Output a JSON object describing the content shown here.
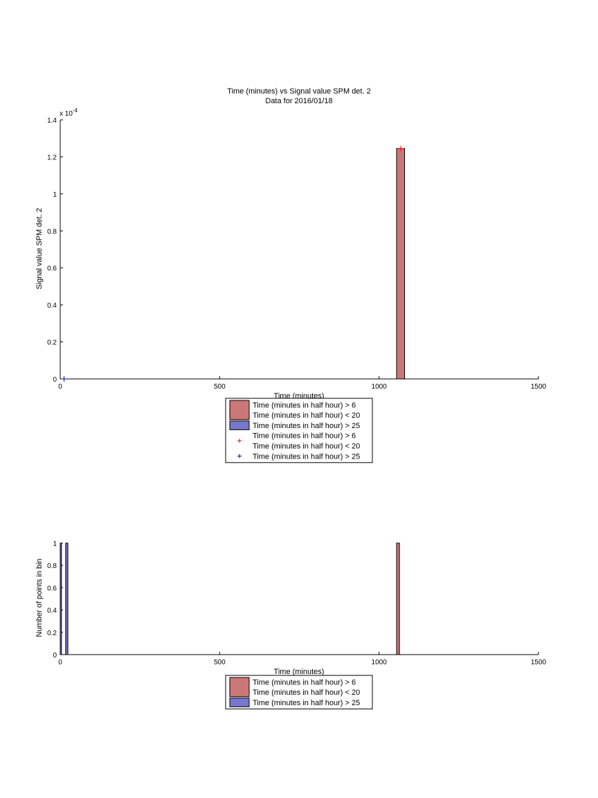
{
  "chart_data": [
    {
      "type": "bar",
      "title": "Time (minutes) vs Signal value SPM det. 2",
      "subtitle": "Data for 2016/01/18",
      "xlabel": "Time (minutes)",
      "ylabel": "Signal value SPM det. 2",
      "exponent_label": "x 10",
      "exponent_power": "-4",
      "xlim": [
        0,
        1500
      ],
      "ylim": [
        0,
        0.00014
      ],
      "xticks": [
        "0",
        "500",
        "1000",
        "1500"
      ],
      "yticks": [
        "0",
        "0.2",
        "0.4",
        "0.6",
        "0.8",
        "1",
        "1.2",
        "1.4"
      ],
      "grid": false,
      "series": [
        {
          "name": "Time (minutes in half hour) > 6\nTime (minutes in half hour) < 20",
          "kind": "bar",
          "color": "#cc7777",
          "bars": [
            {
              "x0": 1055,
              "x1": 1080,
              "value": 0.0001245
            }
          ]
        },
        {
          "name": "Time (minutes in half hour) > 25",
          "kind": "bar",
          "color": "#7777cc",
          "bars": []
        },
        {
          "name": "Time (minutes in half hour) > 6\nTime (minutes in half hour) < 20",
          "kind": "marker",
          "color": "#ff0000",
          "points": [
            {
              "x": 1068,
              "y": 0.0001245
            }
          ]
        },
        {
          "name": "Time (minutes in half hour) > 25",
          "kind": "marker",
          "color": "#0000aa",
          "points": [
            {
              "x": 12,
              "y": 0
            }
          ]
        }
      ],
      "legend": {
        "placement": "below-axes",
        "entries": [
          {
            "lines": [
              "Time (minutes in half hour) > 6",
              "Time (minutes in half hour) < 20"
            ],
            "kind": "patch",
            "color": "#cc7777"
          },
          {
            "lines": [
              "Time (minutes in half hour) > 25"
            ],
            "kind": "patch",
            "color": "#7777cc"
          },
          {
            "lines": [
              "Time (minutes in half hour) > 6",
              "Time (minutes in half hour) < 20"
            ],
            "kind": "marker",
            "color": "#ff0000"
          },
          {
            "lines": [
              "Time (minutes in half hour) > 25"
            ],
            "kind": "marker",
            "color": "#0000aa"
          }
        ]
      }
    },
    {
      "type": "bar",
      "xlabel": "Time (minutes)",
      "ylabel": "Number of points in bin",
      "xlim": [
        0,
        1500
      ],
      "ylim": [
        0,
        1
      ],
      "xticks": [
        "0",
        "500",
        "1000",
        "1500"
      ],
      "yticks": [
        "0",
        "0.2",
        "0.4",
        "0.6",
        "0.8",
        "1"
      ],
      "grid": false,
      "series": [
        {
          "name": "Time (minutes in half hour) > 6\nTime (minutes in half hour) < 20",
          "kind": "bar",
          "color": "#cc7777",
          "bars": [
            {
              "x0": 1055,
              "x1": 1064,
              "value": 1
            }
          ]
        },
        {
          "name": "Time (minutes in half hour) > 25",
          "kind": "bar",
          "color": "#7777cc",
          "bars": [
            {
              "x0": 0,
              "x1": 4,
              "value": 1
            },
            {
              "x0": 17,
              "x1": 24,
              "value": 1
            }
          ]
        }
      ],
      "legend": {
        "placement": "below-axes",
        "entries": [
          {
            "lines": [
              "Time (minutes in half hour) > 6",
              "Time (minutes in half hour) < 20"
            ],
            "kind": "patch",
            "color": "#cc7777"
          },
          {
            "lines": [
              "Time (minutes in half hour) > 25"
            ],
            "kind": "patch",
            "color": "#7777cc"
          }
        ]
      }
    }
  ]
}
